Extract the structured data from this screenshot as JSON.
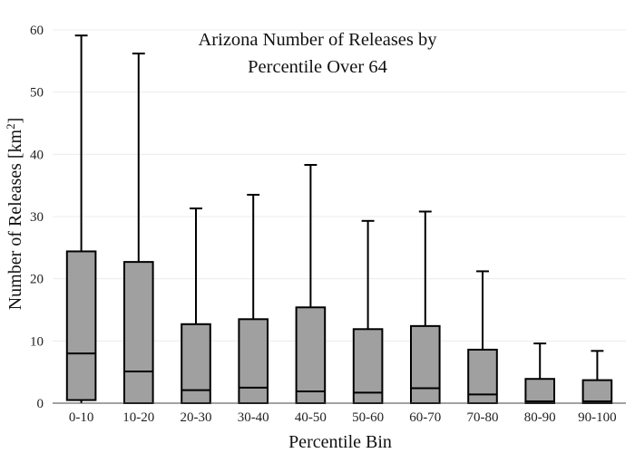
{
  "chart_data": {
    "type": "box",
    "title_lines": [
      "Arizona Number of Releases by",
      "Percentile Over 64"
    ],
    "xlabel": "Percentile Bin",
    "ylabel_main": "Number of Releases  [km",
    "ylabel_sup": "2",
    "ylabel_close": "]",
    "ylim": [
      0,
      60
    ],
    "yticks": [
      0,
      10,
      20,
      30,
      40,
      50,
      60
    ],
    "grid": true,
    "categories": [
      "0-10",
      "10-20",
      "20-30",
      "30-40",
      "40-50",
      "50-60",
      "60-70",
      "70-80",
      "80-90",
      "90-100"
    ],
    "boxes": [
      {
        "min": 0,
        "q1": 0.5,
        "median": 8.0,
        "q3": 24.4,
        "max": 59.1
      },
      {
        "min": 0,
        "q1": 0.0,
        "median": 5.1,
        "q3": 22.7,
        "max": 56.2
      },
      {
        "min": 0,
        "q1": 0.0,
        "median": 2.1,
        "q3": 12.7,
        "max": 31.3
      },
      {
        "min": 0,
        "q1": 0.0,
        "median": 2.5,
        "q3": 13.5,
        "max": 33.5
      },
      {
        "min": 0,
        "q1": 0.0,
        "median": 1.9,
        "q3": 15.4,
        "max": 38.3
      },
      {
        "min": 0,
        "q1": 0.0,
        "median": 1.7,
        "q3": 11.9,
        "max": 29.3
      },
      {
        "min": 0,
        "q1": 0.0,
        "median": 2.4,
        "q3": 12.4,
        "max": 30.8
      },
      {
        "min": 0,
        "q1": 0.0,
        "median": 1.4,
        "q3": 8.6,
        "max": 21.2
      },
      {
        "min": 0,
        "q1": 0.0,
        "median": 0.3,
        "q3": 3.9,
        "max": 9.6
      },
      {
        "min": 0,
        "q1": 0.0,
        "median": 0.3,
        "q3": 3.7,
        "max": 8.4
      }
    ],
    "colors": {
      "box_fill": "#a0a0a0",
      "stroke": "#000000",
      "grid": "#ececec"
    }
  }
}
